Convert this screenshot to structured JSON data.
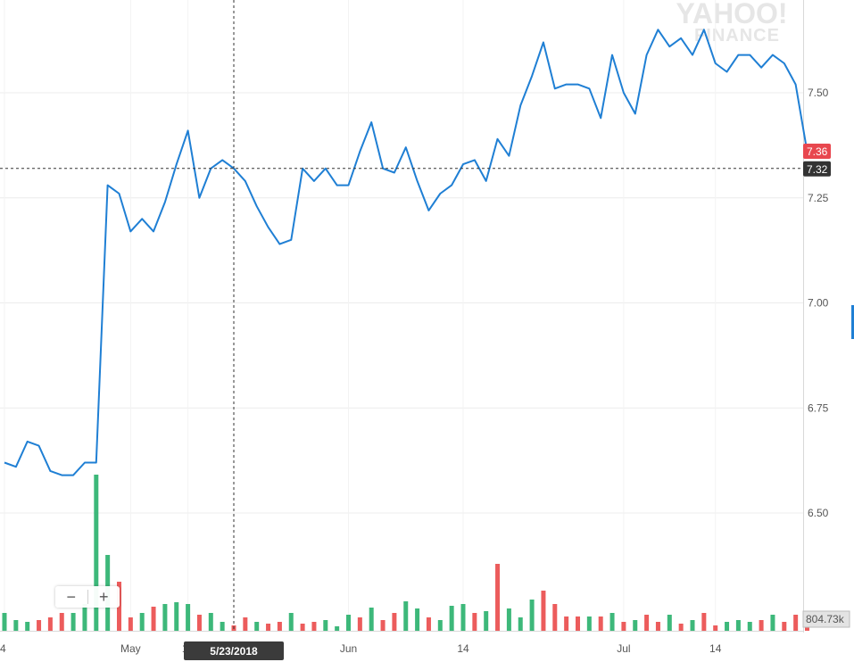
{
  "watermark": {
    "line1": "YAHOO!",
    "line2": "FINANCE"
  },
  "crosshair": {
    "date_label": "5/23/2018",
    "price_label": "7.32",
    "price": 7.32,
    "x_index": 20
  },
  "last_price": {
    "label": "7.36",
    "value": 7.36
  },
  "volume_label": "804.73k",
  "zoom": {
    "minus": "−",
    "plus": "+"
  },
  "colors": {
    "line": "#1f7fd4",
    "vol_up": "#3db87a",
    "vol_down": "#ec5c5c",
    "last_badge": "#e8474f",
    "cross_badge": "#333333",
    "grid": "#ececec"
  },
  "chart_data": {
    "type": "line",
    "title": "",
    "xlabel": "",
    "ylabel": "",
    "ylim": [
      6.25,
      7.75
    ],
    "yticks": [
      "7.50",
      "7.25",
      "7.00",
      "6.75",
      "6.50"
    ],
    "ytick_values": [
      7.5,
      7.25,
      7.0,
      6.75,
      6.5
    ],
    "xticks": [
      {
        "label": "4",
        "index": 0
      },
      {
        "label": "May",
        "index": 11
      },
      {
        "label": "14",
        "index": 16
      },
      {
        "label": "Jun",
        "index": 30
      },
      {
        "label": "14",
        "index": 40
      },
      {
        "label": "Jul",
        "index": 54
      },
      {
        "label": "14",
        "index": 62
      }
    ],
    "series": [
      {
        "values": [
          6.62,
          6.61,
          6.67,
          6.66,
          6.6,
          6.59,
          6.59,
          6.62,
          6.62,
          7.28,
          7.26,
          7.17,
          7.2,
          7.17,
          7.24,
          7.33,
          7.41,
          7.25,
          7.32,
          7.34,
          7.32,
          7.29,
          7.23,
          7.18,
          7.14,
          7.15,
          7.32,
          7.29,
          7.32,
          7.28,
          7.28,
          7.36,
          7.43,
          7.32,
          7.31,
          7.37,
          7.29,
          7.22,
          7.26,
          7.28,
          7.33,
          7.34,
          7.29,
          7.39,
          7.35,
          7.47,
          7.54,
          7.62,
          7.51,
          7.52,
          7.52,
          7.51,
          7.44,
          7.59,
          7.5,
          7.45,
          7.59,
          7.65,
          7.61,
          7.63,
          7.59,
          7.65,
          7.57,
          7.55,
          7.59,
          7.59,
          7.56,
          7.59,
          7.57,
          7.52,
          7.36
        ]
      }
    ],
    "volume": {
      "values": [
        0.2,
        0.12,
        0.1,
        0.12,
        0.15,
        0.2,
        0.2,
        0.3,
        1.75,
        0.85,
        0.55,
        0.15,
        0.2,
        0.27,
        0.3,
        0.32,
        0.3,
        0.18,
        0.2,
        0.1,
        0.06,
        0.15,
        0.1,
        0.08,
        0.1,
        0.2,
        0.08,
        0.1,
        0.12,
        0.05,
        0.18,
        0.15,
        0.26,
        0.12,
        0.2,
        0.33,
        0.25,
        0.15,
        0.12,
        0.28,
        0.3,
        0.2,
        0.22,
        0.75,
        0.25,
        0.15,
        0.35,
        0.45,
        0.3,
        0.16,
        0.16,
        0.16,
        0.16,
        0.2,
        0.1,
        0.12,
        0.18,
        0.1,
        0.18,
        0.08,
        0.12,
        0.2,
        0.06,
        0.1,
        0.12,
        0.1,
        0.12,
        0.18,
        0.1,
        0.18,
        0.1
      ],
      "up": [
        true,
        true,
        true,
        false,
        false,
        false,
        true,
        true,
        true,
        true,
        false,
        false,
        true,
        false,
        true,
        true,
        true,
        false,
        true,
        true,
        false,
        false,
        true,
        false,
        false,
        true,
        false,
        false,
        true,
        true,
        true,
        false,
        true,
        false,
        false,
        true,
        true,
        false,
        true,
        true,
        true,
        false,
        true,
        false,
        true,
        true,
        true,
        false,
        false,
        false,
        false,
        true,
        false,
        true,
        false,
        true,
        false,
        false,
        true,
        false,
        true,
        false,
        false,
        true,
        true,
        true,
        false,
        true,
        false,
        false,
        false
      ]
    }
  }
}
